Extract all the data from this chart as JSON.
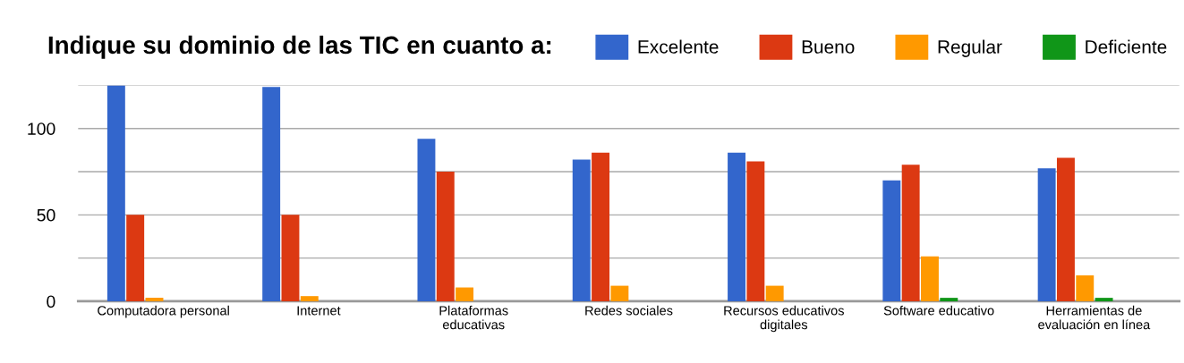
{
  "chart_data": {
    "type": "bar",
    "title": "Indique su dominio de las TIC en cuanto a:",
    "categories": [
      "Computadora personal",
      "Internet",
      "Plataformas\neducativas",
      "Redes sociales",
      "Recursos educativos\ndigitales",
      "Software educativo",
      "Herramientas de\nevaluación en línea"
    ],
    "series": [
      {
        "name": "Excelente",
        "color": "#3366cc",
        "values": [
          125,
          124,
          94,
          82,
          86,
          70,
          77
        ]
      },
      {
        "name": "Bueno",
        "color": "#dc3912",
        "values": [
          50,
          50,
          75,
          86,
          81,
          79,
          83
        ]
      },
      {
        "name": "Regular",
        "color": "#ff9900",
        "values": [
          2,
          3,
          8,
          9,
          9,
          26,
          15
        ]
      },
      {
        "name": "Deficiente",
        "color": "#109618",
        "values": [
          0,
          0,
          0,
          0,
          0,
          2,
          2
        ]
      }
    ],
    "ylim": [
      0,
      125
    ],
    "yticks": [
      0,
      {
        "value": 25,
        "label": null
      },
      50,
      {
        "value": 75,
        "label": null
      },
      100,
      {
        "value": 125,
        "label": null
      }
    ],
    "grid": "y",
    "legend": "top right"
  }
}
